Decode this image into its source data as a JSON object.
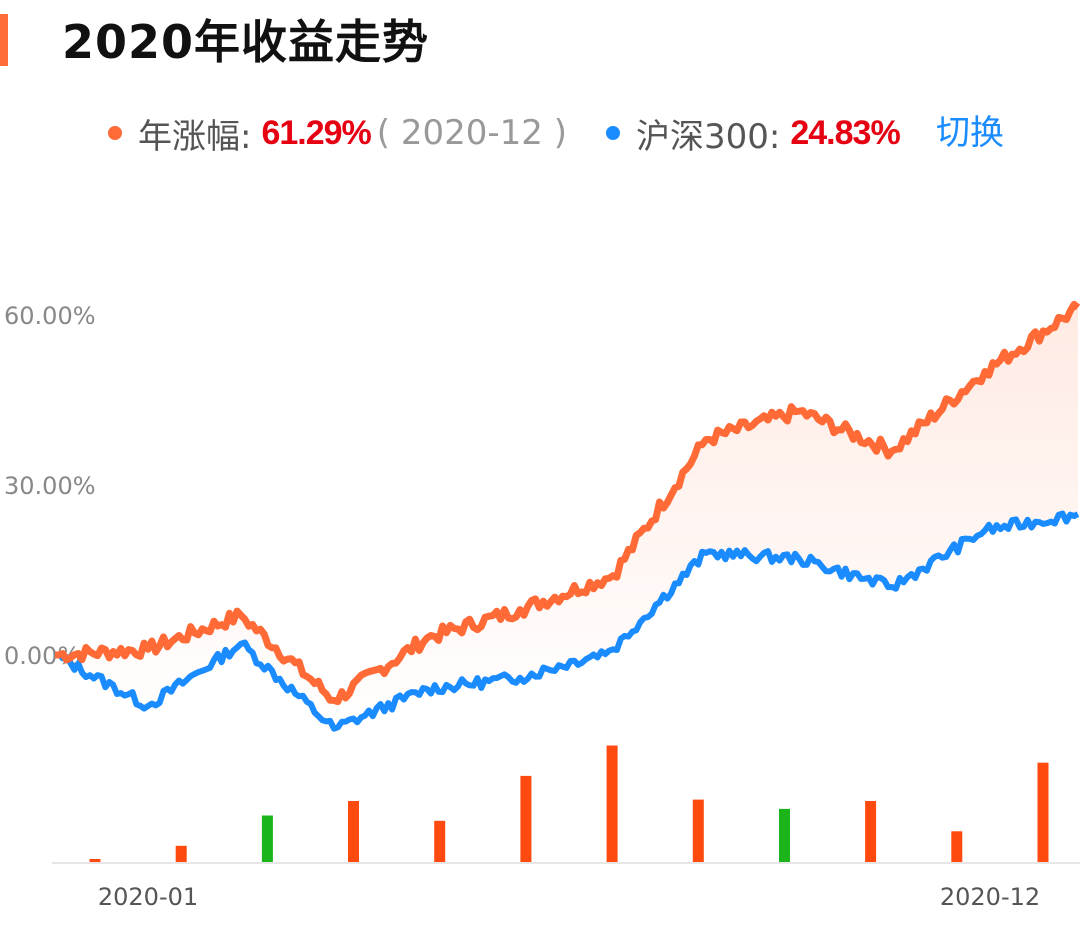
{
  "title": "2020年收益走势",
  "legend": {
    "fund_label": "年涨幅:",
    "fund_value": "61.29%",
    "fund_date": "( 2020-12 )",
    "index_label": "沪深300:",
    "index_value": "24.83%",
    "switch_label": "切换"
  },
  "colors": {
    "accent": "#ff6a36",
    "fund_line": "#ff6a36",
    "index_line": "#1a8cff",
    "value_red": "#e50012",
    "bar_up": "#ff4a0f",
    "bar_down": "#1bb51b",
    "switch_blue": "#1a8cff"
  },
  "chart_data": {
    "type": "line",
    "y_unit": "%",
    "ylim": [
      -15,
      72
    ],
    "y_ticks": [
      "60.00%",
      "30.00%",
      "0.00%"
    ],
    "y_tick_values": [
      60,
      30,
      0
    ],
    "x_ticks": [
      "2020-01",
      "2020-12"
    ],
    "x": [
      "2020-01",
      "2020-02",
      "2020-03",
      "2020-04",
      "2020-05",
      "2020-06",
      "2020-07",
      "2020-08",
      "2020-09",
      "2020-10",
      "2020-11",
      "2020-12"
    ],
    "series": [
      {
        "name": "年涨幅",
        "values": [
          0,
          1,
          7,
          -8,
          3,
          8,
          14,
          38,
          43,
          36,
          50,
          61.29
        ]
      },
      {
        "name": "沪深300",
        "values": [
          0,
          -9,
          2,
          -13,
          -6,
          -4,
          1,
          18,
          17,
          12,
          22,
          24.83
        ]
      }
    ],
    "bars": {
      "categories": [
        "2020-01",
        "2020-02",
        "2020-03",
        "2020-04",
        "2020-05",
        "2020-06",
        "2020-07",
        "2020-08",
        "2020-09",
        "2020-10",
        "2020-11",
        "2020-12"
      ],
      "values": [
        0.3,
        1.3,
        -3.6,
        4.7,
        3.2,
        6.6,
        8.9,
        4.8,
        -4.1,
        4.7,
        2.4,
        7.6
      ]
    },
    "grid": false,
    "legend_position": "top"
  }
}
